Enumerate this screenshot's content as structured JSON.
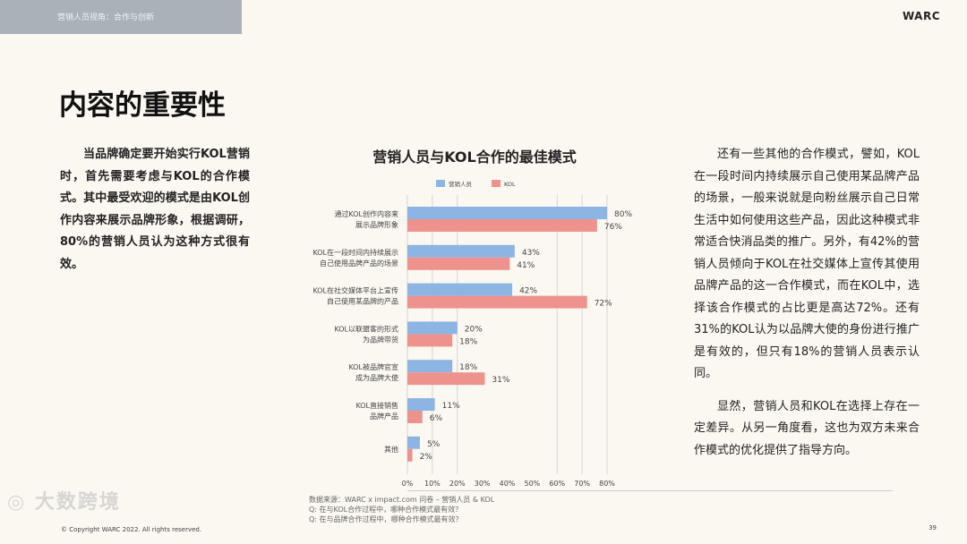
{
  "header": {
    "section": "营销人员视角：合作与创新",
    "brand": "WARC"
  },
  "title": "内容的重要性",
  "left_text": "当品牌确定要开始实行KOL营销时，首先需要考虑与KOL的合作模式。其中最受欢迎的模式是由KOL创作内容来展示品牌形象，根据调研，80%的营销人员认为这种方式很有效。",
  "right_text": [
    "还有一些其他的合作模式，譬如，KOL在一段时间内持续展示自己使用某品牌产品的场景，一般来说就是向粉丝展示自己日常生活中如何使用这些产品，因此这种模式非常适合快消品类的推广。另外，有42%的营销人员倾向于KOL在社交媒体上宣传其使用品牌产品的这一合作模式，而在KOL中，选择该合作模式的占比更是高达72%。还有31%的KOL认为以品牌大使的身份进行推广是有效的，但只有18%的营销人员表示认同。",
    "显然，营销人员和KOL在选择上存在一定差异。从另一角度看，这也为双方未来合作模式的优化提供了指导方向。"
  ],
  "chart_data": {
    "type": "bar",
    "orientation": "horizontal",
    "title": "营销人员与KOL合作的最佳模式",
    "categories": [
      [
        "通过KOL创作内容来",
        "展示品牌形象"
      ],
      [
        "KOL在一段时间内持续展示",
        "自己使用品牌产品的场景"
      ],
      [
        "KOL在社交媒体平台上宣传",
        "自己使用某品牌的产品"
      ],
      [
        "KOL以联盟客的形式",
        "为品牌带货"
      ],
      [
        "KOL被品牌官宣",
        "成为品牌大使"
      ],
      [
        "KOL直接销售",
        "品牌产品"
      ],
      [
        "其他"
      ]
    ],
    "series": [
      {
        "name": "营销人员",
        "values": [
          80,
          43,
          42,
          20,
          18,
          11,
          5
        ],
        "color": "#8db5e3"
      },
      {
        "name": "KOL",
        "values": [
          76,
          41,
          72,
          18,
          31,
          6,
          2
        ],
        "color": "#ee928e"
      }
    ],
    "value_suffix": "%",
    "xlim": [
      0,
      80
    ],
    "xticks": [
      "0%",
      "10%",
      "20%",
      "30%",
      "40%",
      "50%",
      "60%",
      "70%",
      "80%"
    ],
    "gridlines_at": [
      10,
      20,
      60,
      70,
      80
    ],
    "legend": "top"
  },
  "source": [
    "数据来源：WARC x impact.com 问卷 – 营销人员 & KOL",
    "Q: 在与KOL合作过程中，哪种合作模式最有效？",
    "Q: 在与品牌合作过程中，哪种合作模式最有效？"
  ],
  "footer": {
    "copyright": "© Copyright WARC 2022. All rights reserved.",
    "page": "39",
    "watermark": "大数跨境"
  }
}
